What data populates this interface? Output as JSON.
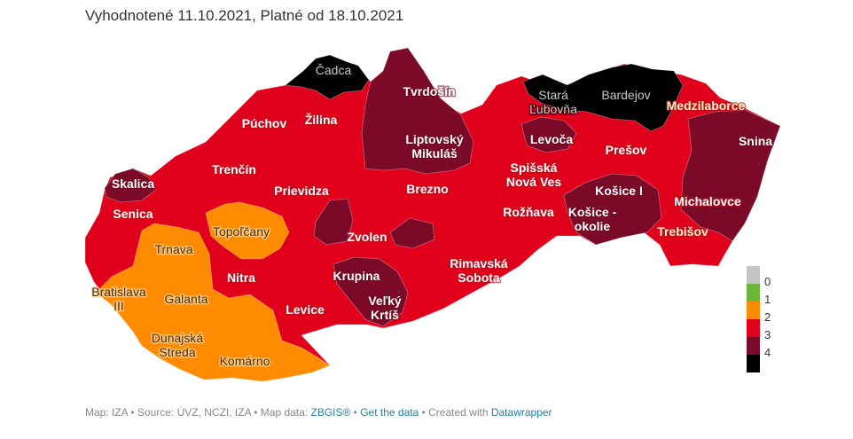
{
  "title": "Vyhodnotené 11.10.2021, Platné od 18.10.2021",
  "colors": {
    "level_0": "#c4c4c4",
    "level_1": "#6fb53a",
    "level_2": "#ff8c00",
    "level_3": "#e0001b",
    "level_4_dark": "#7a0a28",
    "level_4_black": "#000000"
  },
  "legend": {
    "items": [
      {
        "label": "0",
        "color": "#c4c4c4"
      },
      {
        "label": "1",
        "color": "#6fb53a"
      },
      {
        "label": "2",
        "color": "#ff8c00"
      },
      {
        "label": "3",
        "color": "#e0001b"
      },
      {
        "label": "4",
        "color": "#7a0a28"
      },
      {
        "label": "",
        "color": "#000000"
      }
    ]
  },
  "labels": {
    "cadca": "Čadca",
    "tvrdosin": "Tvrdošín",
    "puchov": "Púchov",
    "zilina": "Žilina",
    "liptovsky_1": "Liptovský",
    "liptovsky_2": "Mikuláš",
    "stara_1": "Stará",
    "stara_2": "Ľubovňa",
    "bardejov": "Bardejov",
    "medzilaborce": "Medzilaborce",
    "snina": "Snina",
    "levoca": "Levoča",
    "presov": "Prešov",
    "trencin": "Trenčín",
    "skalica": "Skalica",
    "prievidza": "Prievidza",
    "brezno": "Brezno",
    "spisska_1": "Spišská",
    "spisska_2": "Nová Ves",
    "kosice1": "Košice I",
    "senica": "Senica",
    "topolcany": "Topoľčany",
    "roznava": "Rožňava",
    "kosice_ok_1": "Košice -",
    "kosice_ok_2": "okolie",
    "michalovce": "Michalovce",
    "zvolen": "Zvolen",
    "trebisov": "Trebišov",
    "trnava": "Trnava",
    "nitra": "Nitra",
    "krupina": "Krupina",
    "rimavska_1": "Rimavská",
    "rimavska_2": "Sobota",
    "bratislava_1": "Bratislava",
    "bratislava_2": "III",
    "galanta": "Galanta",
    "levice": "Levice",
    "velky_1": "Veľký",
    "velky_2": "Krtíš",
    "dunajska_1": "Dunajská",
    "dunajska_2": "Streda",
    "komarno": "Komárno"
  },
  "footer": {
    "prefix": "Map: IZA • Source: ÚVZ, NCZI, IZA • Map data: ",
    "link_zbgis": "ZBGIS®",
    "sep1": " • ",
    "link_data": "Get the data",
    "sep2": " • Created with ",
    "link_dw": "Datawrapper"
  }
}
